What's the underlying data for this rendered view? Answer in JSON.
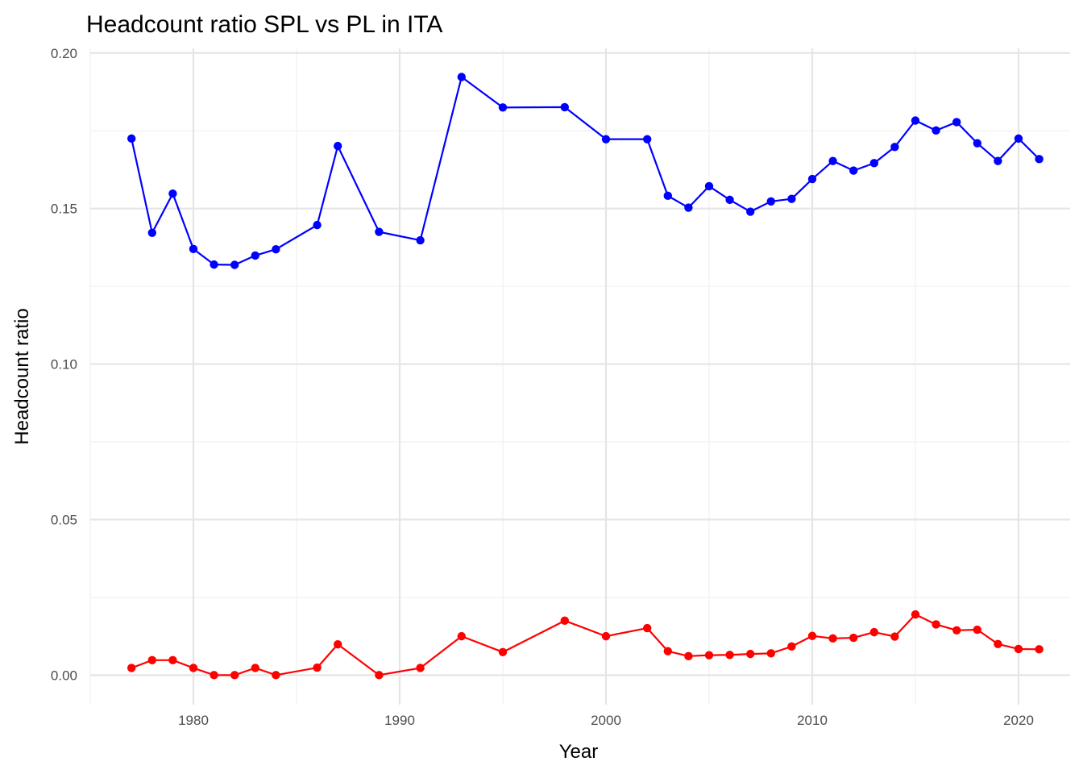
{
  "chart_data": {
    "type": "line",
    "title": "Headcount ratio SPL vs PL in ITA",
    "xlabel": "Year",
    "ylabel": "Headcount ratio",
    "xlim": [
      1975,
      2022.5
    ],
    "ylim": [
      -0.0095,
      0.2015
    ],
    "x_ticks": [
      1980,
      1990,
      2000,
      2010,
      2020
    ],
    "x_tick_labels": [
      "1980",
      "1990",
      "2000",
      "2010",
      "2020"
    ],
    "y_ticks": [
      0.0,
      0.05,
      0.1,
      0.15,
      0.2
    ],
    "y_tick_labels": [
      "0.00",
      "0.05",
      "0.10",
      "0.15",
      "0.20"
    ],
    "grid": true,
    "legend": "none",
    "series": [
      {
        "color": "#0000ff",
        "x": [
          1977,
          1978,
          1979,
          1980,
          1981,
          1982,
          1983,
          1984,
          1986,
          1987,
          1989,
          1991,
          1993,
          1995,
          1998,
          2000,
          2002,
          2003,
          2004,
          2005,
          2006,
          2007,
          2008,
          2009,
          2010,
          2011,
          2012,
          2013,
          2014,
          2015,
          2016,
          2017,
          2018,
          2019,
          2020,
          2021
        ],
        "values": [
          0.1725,
          0.1422,
          0.1548,
          0.137,
          0.132,
          0.1319,
          0.1349,
          0.1369,
          0.1447,
          0.1701,
          0.1425,
          0.1398,
          0.1923,
          0.1825,
          0.1826,
          0.1723,
          0.1723,
          0.1541,
          0.1503,
          0.1572,
          0.1528,
          0.149,
          0.1523,
          0.1531,
          0.1595,
          0.1653,
          0.1622,
          0.1646,
          0.1698,
          0.1783,
          0.1751,
          0.1778,
          0.171,
          0.1653,
          0.1725,
          0.1659
        ]
      },
      {
        "color": "#ff0000",
        "x": [
          1977,
          1978,
          1979,
          1980,
          1981,
          1982,
          1983,
          1984,
          1986,
          1987,
          1989,
          1991,
          1993,
          1995,
          1998,
          2000,
          2002,
          2003,
          2004,
          2005,
          2006,
          2007,
          2008,
          2009,
          2010,
          2011,
          2012,
          2013,
          2014,
          2015,
          2016,
          2017,
          2018,
          2019,
          2020,
          2021
        ],
        "values": [
          0.0023,
          0.0048,
          0.0048,
          0.0023,
          0.0,
          0.0,
          0.0023,
          0.0,
          0.0024,
          0.0099,
          0.0,
          0.0023,
          0.0125,
          0.0074,
          0.0175,
          0.0125,
          0.0151,
          0.0077,
          0.0061,
          0.0064,
          0.0065,
          0.0068,
          0.007,
          0.0092,
          0.0126,
          0.0118,
          0.012,
          0.0138,
          0.0124,
          0.0195,
          0.0163,
          0.0144,
          0.0146,
          0.01,
          0.0084,
          0.0083
        ]
      }
    ]
  }
}
